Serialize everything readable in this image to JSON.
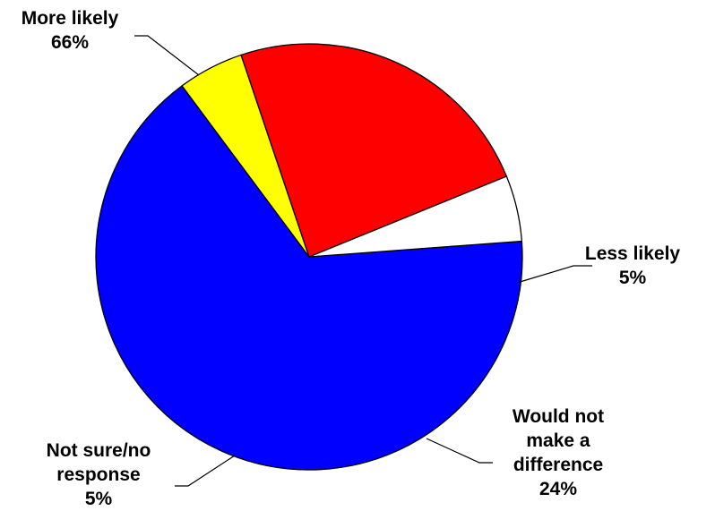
{
  "chart_data": {
    "type": "pie",
    "title": "",
    "slices": [
      {
        "label_lines": [
          "More likely"
        ],
        "value": 66,
        "value_text": "66%",
        "color": "#0000FF"
      },
      {
        "label_lines": [
          "Less likely"
        ],
        "value": 5,
        "value_text": "5%",
        "color": "#FFFF00"
      },
      {
        "label_lines": [
          "Would not",
          "make a",
          "difference"
        ],
        "value": 24,
        "value_text": "24%",
        "color": "#FF0000"
      },
      {
        "label_lines": [
          "Not sure/no",
          "response"
        ],
        "value": 5,
        "value_text": "5%",
        "color": "#FFFFFF"
      }
    ],
    "start_angle_deg": 0,
    "direction": "clockwise",
    "legend": "none",
    "outline_color": "#000000"
  }
}
